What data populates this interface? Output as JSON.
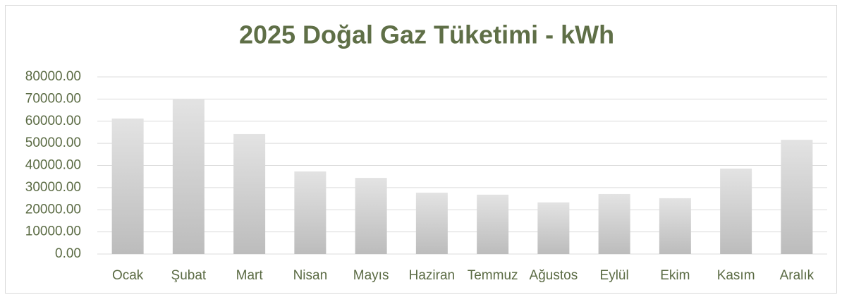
{
  "chart_data": {
    "type": "bar",
    "title": "2025 Doğal Gaz Tüketimi - kWh",
    "categories": [
      "Ocak",
      "Şubat",
      "Mart",
      "Nisan",
      "Mayıs",
      "Haziran",
      "Temmuz",
      "Ağustos",
      "Eylül",
      "Ekim",
      "Kasım",
      "Aralık"
    ],
    "values": [
      61200,
      70100,
      54200,
      37300,
      34400,
      27700,
      26800,
      23300,
      27100,
      25200,
      38600,
      51600
    ],
    "color": "#d0d0d0",
    "ylim": [
      0,
      80000
    ],
    "yticks": [
      {
        "value": 0,
        "label": "0.00"
      },
      {
        "value": 10000,
        "label": "10000.00"
      },
      {
        "value": 20000,
        "label": "20000.00"
      },
      {
        "value": 30000,
        "label": "30000.00"
      },
      {
        "value": 40000,
        "label": "40000.00"
      },
      {
        "value": 50000,
        "label": "50000.00"
      },
      {
        "value": 60000,
        "label": "60000.00"
      },
      {
        "value": 70000,
        "label": "70000.00"
      },
      {
        "value": 80000,
        "label": "80000.00"
      }
    ],
    "grid": true
  }
}
